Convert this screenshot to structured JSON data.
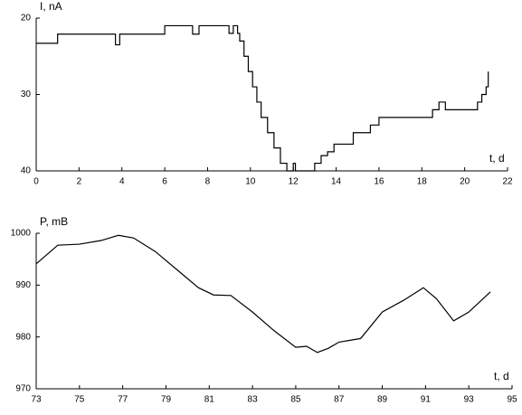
{
  "chart_data": [
    {
      "type": "line",
      "step": "post",
      "y_inverted": true,
      "ylabel": "I, nA",
      "xlabel": "t, d",
      "x": [
        0,
        1,
        3.7,
        3.9,
        6,
        7.3,
        7.6,
        9,
        9.2,
        9.4,
        9.5,
        9.7,
        9.9,
        10.1,
        10.3,
        10.5,
        10.8,
        11.1,
        11.4,
        11.7,
        12.0,
        12.1,
        13.0,
        13.3,
        13.6,
        13.9,
        14.8,
        15.6,
        16.0,
        18.0,
        18.5,
        18.8,
        19.1,
        20.4,
        20.6,
        20.8,
        21.0,
        21.1
      ],
      "values": [
        23.3,
        22.1,
        23.5,
        22.1,
        21,
        22.1,
        21,
        22,
        21,
        22,
        23,
        25,
        27,
        29,
        31,
        33,
        35,
        37,
        39,
        40,
        39,
        40,
        39,
        38,
        37.5,
        36.5,
        35,
        34,
        33,
        33,
        32,
        31,
        32,
        32,
        31,
        30,
        29,
        27
      ],
      "color": "#000000",
      "xlim": [
        0,
        22
      ],
      "xticks": [
        0,
        2,
        4,
        6,
        8,
        10,
        12,
        14,
        16,
        18,
        20,
        22
      ],
      "ylim": [
        20,
        40
      ],
      "yticks": [
        20,
        30,
        40
      ]
    },
    {
      "type": "line",
      "ylabel": "P, mB",
      "xlabel": "t, d",
      "x": [
        73,
        74,
        75,
        76,
        76.8,
        77.5,
        78.5,
        79.5,
        80.5,
        81.2,
        82,
        83,
        84,
        85,
        85.5,
        86,
        86.5,
        87,
        88,
        89,
        90,
        90.9,
        91.5,
        92.3,
        93,
        94
      ],
      "values": [
        994.1,
        997.7,
        997.9,
        998.6,
        999.6,
        999.1,
        996.5,
        993,
        989.5,
        988.1,
        988,
        984.8,
        981.2,
        978,
        978.2,
        977,
        977.8,
        979,
        979.7,
        984.8,
        987.1,
        989.5,
        987.4,
        983.1,
        984.8,
        988.7
      ],
      "color": "#000000",
      "xlim": [
        73,
        95
      ],
      "xticks": [
        73,
        75,
        77,
        79,
        81,
        83,
        85,
        87,
        89,
        91,
        93,
        95
      ],
      "ylim": [
        970,
        1000
      ],
      "yticks": [
        970,
        980,
        990,
        1000
      ]
    }
  ]
}
